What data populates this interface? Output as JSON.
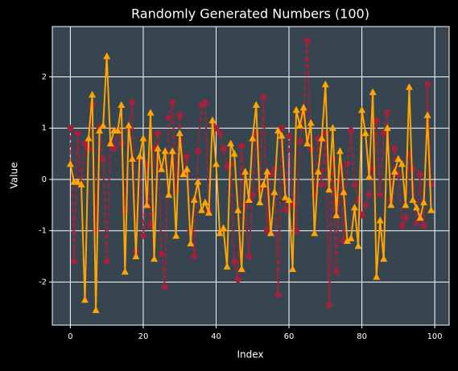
{
  "chart_data": {
    "type": "line",
    "title": "Randomly Generated Numbers (100)",
    "xlabel": "Index",
    "ylabel": "Value",
    "x": [
      0,
      1,
      2,
      3,
      4,
      5,
      6,
      7,
      8,
      9,
      10,
      11,
      12,
      13,
      14,
      15,
      16,
      17,
      18,
      19,
      20,
      21,
      22,
      23,
      24,
      25,
      26,
      27,
      28,
      29,
      30,
      31,
      32,
      33,
      34,
      35,
      36,
      37,
      38,
      39,
      40,
      41,
      42,
      43,
      44,
      45,
      46,
      47,
      48,
      49,
      50,
      51,
      52,
      53,
      54,
      55,
      56,
      57,
      58,
      59,
      60,
      61,
      62,
      63,
      64,
      65,
      66,
      67,
      68,
      69,
      70,
      71,
      72,
      73,
      74,
      75,
      76,
      77,
      78,
      79,
      80,
      81,
      82,
      83,
      84,
      85,
      86,
      87,
      88,
      89,
      90,
      91,
      92,
      93,
      94,
      95,
      96,
      97,
      98,
      99
    ],
    "series": [
      {
        "color": "#a3223b",
        "marker": "circle",
        "dashed": true,
        "values": [
          1.0,
          -1.6,
          0.9,
          -0.1,
          0.7,
          0.6,
          1.45,
          -1.0,
          1.0,
          0.4,
          -1.6,
          0.7,
          0.6,
          0.95,
          0.7,
          -0.6,
          1.0,
          1.5,
          -1.4,
          0.4,
          -1.1,
          0.3,
          -0.9,
          0.6,
          0.9,
          -1.45,
          -2.1,
          1.2,
          1.5,
          -0.2,
          1.25,
          0.1,
          0.45,
          -1.0,
          -1.5,
          0.55,
          1.45,
          1.5,
          -0.6,
          1.1,
          1.0,
          0.9,
          0.6,
          0.25,
          0.3,
          -1.6,
          -1.95,
          0.65,
          -0.5,
          -1.5,
          -0.3,
          0.9,
          -0.2,
          1.6,
          -1.0,
          0.1,
          0.2,
          -2.25,
          1.0,
          -0.6,
          0.85,
          -0.5,
          -1.0,
          0.75,
          1.3,
          2.7,
          0.6,
          -0.3,
          0.8,
          -0.1,
          0.9,
          -2.45,
          0.4,
          -1.8,
          0.25,
          -1.2,
          0.3,
          0.95,
          -0.1,
          -0.4,
          -0.7,
          -0.5,
          -0.3,
          0.2,
          1.15,
          -0.3,
          0.9,
          1.3,
          -0.4,
          0.6,
          0.1,
          -0.9,
          -0.75,
          0.5,
          0.2,
          -0.85,
          0.1,
          -0.9,
          1.85,
          -0.1
        ]
      },
      {
        "color": "#ffa500",
        "marker": "triangle",
        "dashed": false,
        "values": [
          0.3,
          -0.05,
          -0.05,
          -0.1,
          -2.35,
          0.8,
          1.65,
          -2.55,
          0.95,
          1.05,
          2.4,
          0.7,
          0.95,
          0.95,
          1.45,
          -1.8,
          1.05,
          0.4,
          -1.5,
          0.45,
          0.8,
          -0.5,
          1.3,
          -1.55,
          0.6,
          0.2,
          0.55,
          -0.3,
          0.55,
          -1.1,
          0.9,
          0.1,
          0.2,
          -1.25,
          -0.4,
          -0.05,
          -0.6,
          -0.45,
          -0.65,
          1.15,
          0.3,
          -1.05,
          -0.95,
          -1.7,
          0.7,
          0.5,
          -0.6,
          -1.75,
          0.15,
          -0.4,
          0.8,
          1.45,
          -0.45,
          -0.1,
          0.15,
          -1.05,
          -0.25,
          0.95,
          0.85,
          -0.35,
          -0.4,
          -1.75,
          1.35,
          1.05,
          1.4,
          0.7,
          1.1,
          -1.05,
          0.15,
          0.8,
          1.85,
          -0.2,
          1.0,
          -0.7,
          0.55,
          -0.25,
          -1.2,
          -1.15,
          -0.55,
          -1.3,
          1.35,
          0.9,
          0.05,
          1.7,
          -1.9,
          -0.8,
          -1.55,
          1.0,
          -0.5,
          0.15,
          0.4,
          0.3,
          -0.5,
          1.8,
          -0.4,
          -0.55,
          -0.75,
          -0.45,
          1.25,
          -0.6
        ]
      }
    ],
    "xlim": [
      -4.95,
      103.95
    ],
    "xticks": [
      0,
      20,
      40,
      60,
      80,
      100
    ],
    "ylim": [
      -2.84,
      2.98
    ],
    "yticks": [
      -2,
      -1,
      0,
      1,
      2
    ],
    "grid": true
  }
}
